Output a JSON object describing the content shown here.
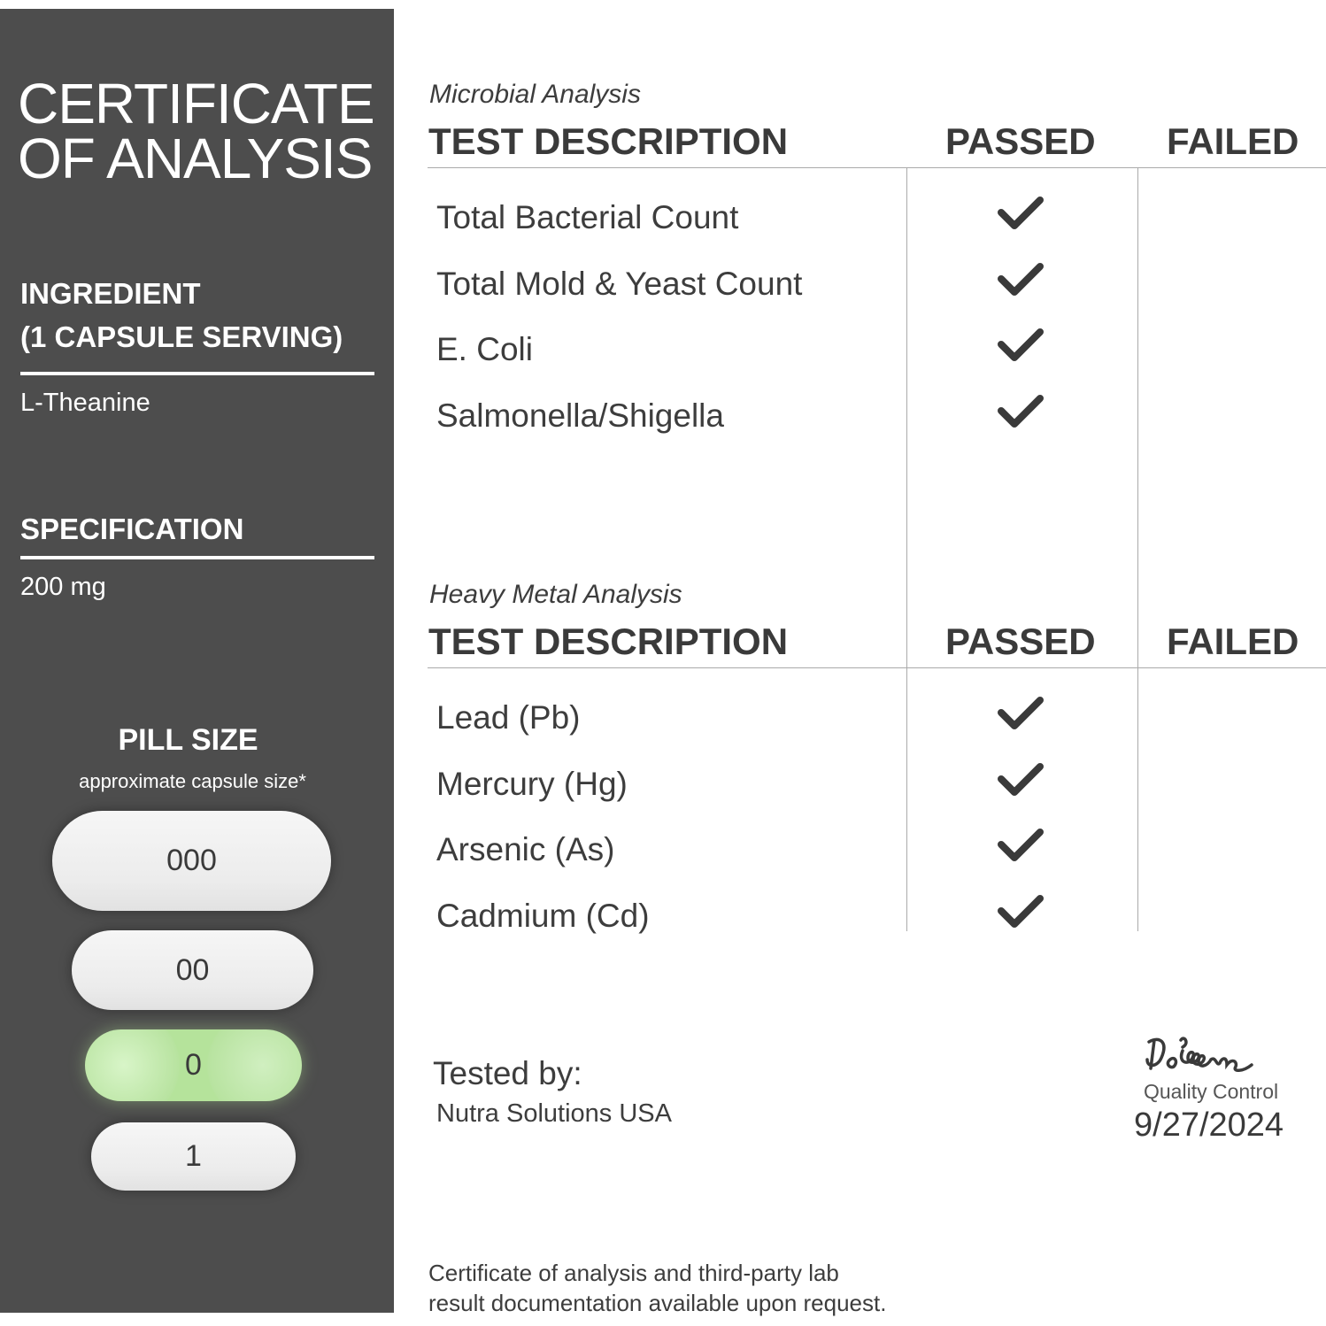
{
  "sidebar": {
    "title_line1": "CERTIFICATE",
    "title_line2": "OF ANALYSIS",
    "ingredient_label_line1": "INGREDIENT",
    "ingredient_label_line2": "(1 CAPSULE SERVING)",
    "ingredient_value": "L-Theanine",
    "specification_label": "SPECIFICATION",
    "specification_value": "200 mg",
    "pill_size_label": "PILL SIZE",
    "pill_size_note": "approximate capsule size*",
    "pills": [
      {
        "label": "000"
      },
      {
        "label": "00"
      },
      {
        "label": "0",
        "selected": true
      },
      {
        "label": "1"
      }
    ],
    "background_color": "#4d4d4d",
    "selected_pill_color": "#b5e39b"
  },
  "microbial": {
    "section_title": "Microbial  Analysis",
    "col_description": "TEST DESCRIPTION",
    "col_passed": "PASSED",
    "col_failed": "FAILED",
    "rows": [
      {
        "test": "Total Bacterial Count",
        "result": "passed"
      },
      {
        "test": "Total Mold & Yeast Count",
        "result": "passed"
      },
      {
        "test": "E. Coli",
        "result": "passed"
      },
      {
        "test": "Salmonella/Shigella",
        "result": "passed"
      }
    ]
  },
  "heavy_metal": {
    "section_title": "Heavy Metal Analysis",
    "col_description": "TEST DESCRIPTION",
    "col_passed": "PASSED",
    "col_failed": "FAILED",
    "rows": [
      {
        "test": "Lead (Pb)",
        "result": "passed"
      },
      {
        "test": "Mercury (Hg)",
        "result": "passed"
      },
      {
        "test": "Arsenic (As)",
        "result": "passed"
      },
      {
        "test": "Cadmium (Cd)",
        "result": "passed"
      }
    ]
  },
  "footer": {
    "tested_by_label": "Tested by:",
    "tested_by_value": "Nutra Solutions USA",
    "signature": "DiLiscano",
    "signature_role": "Quality Control",
    "date": "9/27/2024",
    "disclaimer_line1": "Certificate of analysis and third-party lab",
    "disclaimer_line2": "result documentation available upon request."
  }
}
